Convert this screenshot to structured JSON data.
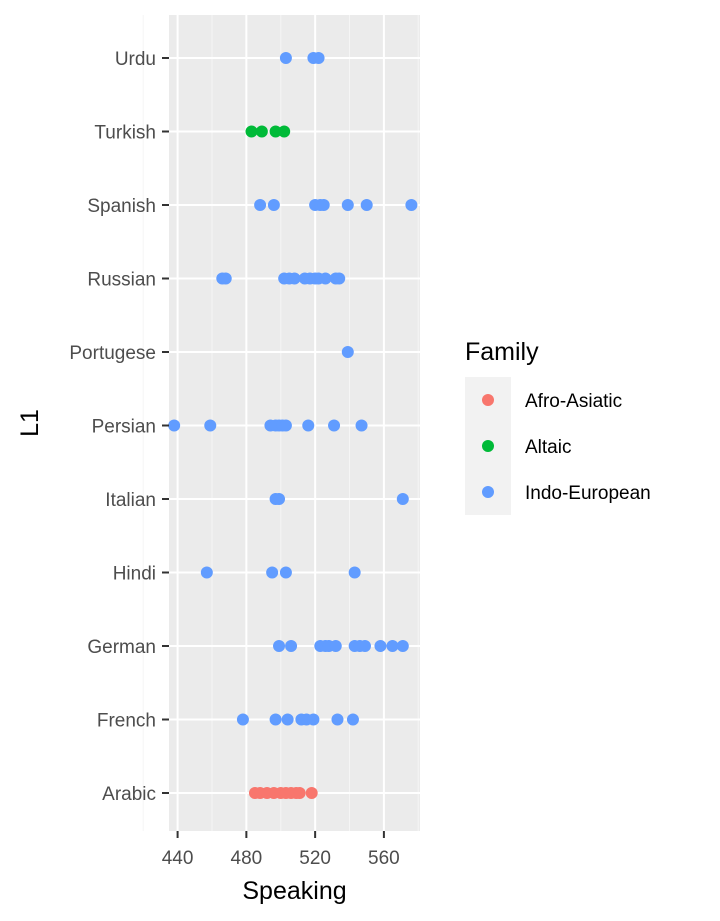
{
  "chart_data": {
    "type": "scatter",
    "title": "",
    "xlabel": "Speaking",
    "ylabel": "L1",
    "xlim": [
      435,
      581
    ],
    "x_ticks": [
      440,
      480,
      520,
      560
    ],
    "x_tick_labels": [
      "440",
      "480",
      "520",
      "560"
    ],
    "categories": [
      "Arabic",
      "French",
      "German",
      "Hindi",
      "Italian",
      "Persian",
      "Portugese",
      "Russian",
      "Spanish",
      "Turkish",
      "Urdu"
    ],
    "grid": true,
    "legend": {
      "title": "Family",
      "position": "right"
    },
    "colors": {
      "Afro-Asiatic": "#F8766D",
      "Altaic": "#00BA38",
      "Indo-European": "#619CFF"
    },
    "series": [
      {
        "name": "Afro-Asiatic",
        "points": [
          {
            "x": 485,
            "y": "Arabic"
          },
          {
            "x": 488,
            "y": "Arabic"
          },
          {
            "x": 492,
            "y": "Arabic"
          },
          {
            "x": 496,
            "y": "Arabic"
          },
          {
            "x": 500,
            "y": "Arabic"
          },
          {
            "x": 503,
            "y": "Arabic"
          },
          {
            "x": 506,
            "y": "Arabic"
          },
          {
            "x": 509,
            "y": "Arabic"
          },
          {
            "x": 511,
            "y": "Arabic"
          },
          {
            "x": 518,
            "y": "Arabic"
          }
        ]
      },
      {
        "name": "Altaic",
        "points": [
          {
            "x": 483,
            "y": "Turkish"
          },
          {
            "x": 489,
            "y": "Turkish"
          },
          {
            "x": 497,
            "y": "Turkish"
          },
          {
            "x": 502,
            "y": "Turkish"
          }
        ]
      },
      {
        "name": "Indo-European",
        "points": [
          {
            "x": 503,
            "y": "Urdu"
          },
          {
            "x": 519,
            "y": "Urdu"
          },
          {
            "x": 522,
            "y": "Urdu"
          },
          {
            "x": 488,
            "y": "Spanish"
          },
          {
            "x": 496,
            "y": "Spanish"
          },
          {
            "x": 520,
            "y": "Spanish"
          },
          {
            "x": 523,
            "y": "Spanish"
          },
          {
            "x": 525,
            "y": "Spanish"
          },
          {
            "x": 539,
            "y": "Spanish"
          },
          {
            "x": 550,
            "y": "Spanish"
          },
          {
            "x": 576,
            "y": "Spanish"
          },
          {
            "x": 466,
            "y": "Russian"
          },
          {
            "x": 468,
            "y": "Russian"
          },
          {
            "x": 502,
            "y": "Russian"
          },
          {
            "x": 505,
            "y": "Russian"
          },
          {
            "x": 508,
            "y": "Russian"
          },
          {
            "x": 514,
            "y": "Russian"
          },
          {
            "x": 517,
            "y": "Russian"
          },
          {
            "x": 520,
            "y": "Russian"
          },
          {
            "x": 522,
            "y": "Russian"
          },
          {
            "x": 526,
            "y": "Russian"
          },
          {
            "x": 532,
            "y": "Russian"
          },
          {
            "x": 534,
            "y": "Russian"
          },
          {
            "x": 539,
            "y": "Portugese"
          },
          {
            "x": 438,
            "y": "Persian"
          },
          {
            "x": 459,
            "y": "Persian"
          },
          {
            "x": 494,
            "y": "Persian"
          },
          {
            "x": 497,
            "y": "Persian"
          },
          {
            "x": 499,
            "y": "Persian"
          },
          {
            "x": 501,
            "y": "Persian"
          },
          {
            "x": 503,
            "y": "Persian"
          },
          {
            "x": 516,
            "y": "Persian"
          },
          {
            "x": 531,
            "y": "Persian"
          },
          {
            "x": 547,
            "y": "Persian"
          },
          {
            "x": 497,
            "y": "Italian"
          },
          {
            "x": 499,
            "y": "Italian"
          },
          {
            "x": 571,
            "y": "Italian"
          },
          {
            "x": 457,
            "y": "Hindi"
          },
          {
            "x": 495,
            "y": "Hindi"
          },
          {
            "x": 503,
            "y": "Hindi"
          },
          {
            "x": 543,
            "y": "Hindi"
          },
          {
            "x": 499,
            "y": "German"
          },
          {
            "x": 506,
            "y": "German"
          },
          {
            "x": 523,
            "y": "German"
          },
          {
            "x": 526,
            "y": "German"
          },
          {
            "x": 528,
            "y": "German"
          },
          {
            "x": 532,
            "y": "German"
          },
          {
            "x": 543,
            "y": "German"
          },
          {
            "x": 546,
            "y": "German"
          },
          {
            "x": 549,
            "y": "German"
          },
          {
            "x": 558,
            "y": "German"
          },
          {
            "x": 565,
            "y": "German"
          },
          {
            "x": 571,
            "y": "German"
          },
          {
            "x": 478,
            "y": "French"
          },
          {
            "x": 497,
            "y": "French"
          },
          {
            "x": 504,
            "y": "French"
          },
          {
            "x": 512,
            "y": "French"
          },
          {
            "x": 515,
            "y": "French"
          },
          {
            "x": 519,
            "y": "French"
          },
          {
            "x": 533,
            "y": "French"
          },
          {
            "x": 542,
            "y": "French"
          }
        ]
      }
    ]
  }
}
